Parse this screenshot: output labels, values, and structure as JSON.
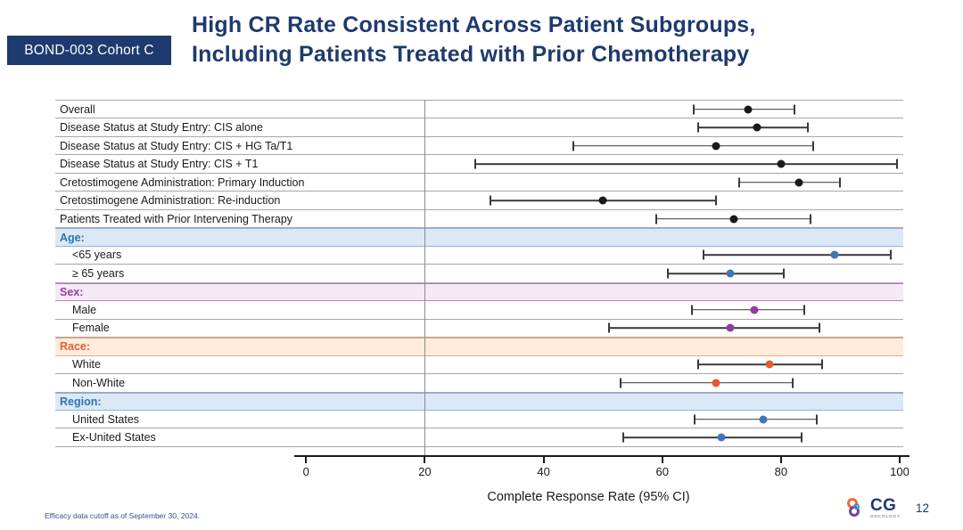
{
  "header": {
    "badge": "BOND-003 Cohort C",
    "title_line1": "High CR Rate Consistent Across Patient Subgroups,",
    "title_line2": "Including Patients Treated with Prior Chemotherapy"
  },
  "footer": {
    "note": "Efficacy data cutoff as of September 30, 2024.",
    "logo_text": "CG",
    "logo_subtext": "ONCOLOGY",
    "page_number": "12"
  },
  "colors": {
    "navy": "#1e3a6e",
    "ci": "#3a3a3a",
    "row_border": "#a6a6a6"
  },
  "chart_data": {
    "type": "forest",
    "xlabel": "Complete Response Rate (95% CI)",
    "xlim": [
      0,
      100
    ],
    "x_ticks": [
      0,
      20,
      40,
      60,
      80,
      100
    ],
    "divider_x": 20,
    "legend_position": "none",
    "grid": false,
    "palette": {
      "main": {
        "dot": "#1a1a1a",
        "text": "#1a1a1a",
        "bg": "#ffffff",
        "border": "#a6a6a6"
      },
      "age": {
        "dot": "#4274b9",
        "text": "#2e74b5",
        "bg": "#dbe8f6",
        "border": "#8fb3de"
      },
      "sex": {
        "dot": "#8f3e9f",
        "text": "#9b3d9b",
        "bg": "#f5e9f6",
        "border": "#bf7ec2"
      },
      "race": {
        "dot": "#e8582b",
        "text": "#e0603a",
        "bg": "#fdebdc",
        "border": "#f0a679"
      },
      "region": {
        "dot": "#4274b9",
        "text": "#2e74b5",
        "bg": "#dbe8f6",
        "border": "#8fb3de"
      }
    },
    "rows": [
      {
        "type": "data",
        "label": "Overall",
        "group": "main",
        "value": 74.5,
        "ci": [
          65.3,
          82.3
        ],
        "indent": false
      },
      {
        "type": "data",
        "label": "Disease Status at Study Entry: CIS alone",
        "group": "main",
        "value": 76,
        "ci": [
          66,
          84.5
        ],
        "indent": false
      },
      {
        "type": "data",
        "label": "Disease Status at Study Entry: CIS + HG Ta/T1",
        "group": "main",
        "value": 69,
        "ci": [
          45,
          85.5
        ],
        "indent": false
      },
      {
        "type": "data",
        "label": "Disease Status at Study Entry: CIS + T1",
        "group": "main",
        "value": 80,
        "ci": [
          28.5,
          99.5
        ],
        "indent": false
      },
      {
        "type": "data",
        "label": "Cretostimogene Administration: Primary Induction",
        "group": "main",
        "value": 83,
        "ci": [
          73,
          90
        ],
        "indent": false
      },
      {
        "type": "data",
        "label": "Cretostimogene Administration: Re-induction",
        "group": "main",
        "value": 50,
        "ci": [
          31,
          69
        ],
        "indent": false
      },
      {
        "type": "data",
        "label": "Patients Treated with Prior Intervening Therapy",
        "group": "main",
        "value": 72,
        "ci": [
          59,
          85
        ],
        "indent": false
      },
      {
        "type": "header",
        "label": "Age:",
        "group": "age"
      },
      {
        "type": "data",
        "label": "<65 years",
        "group": "age",
        "value": 89,
        "ci": [
          67,
          98.5
        ],
        "indent": true
      },
      {
        "type": "data",
        "label": "≥ 65 years",
        "group": "age",
        "value": 71.5,
        "ci": [
          61,
          80.5
        ],
        "indent": true
      },
      {
        "type": "header",
        "label": "Sex:",
        "group": "sex"
      },
      {
        "type": "data",
        "label": "Male",
        "group": "sex",
        "value": 75.5,
        "ci": [
          65,
          84
        ],
        "indent": true
      },
      {
        "type": "data",
        "label": "Female",
        "group": "sex",
        "value": 71.5,
        "ci": [
          51,
          86.5
        ],
        "indent": true
      },
      {
        "type": "header",
        "label": "Race:",
        "group": "race"
      },
      {
        "type": "data",
        "label": "White",
        "group": "race",
        "value": 78,
        "ci": [
          66,
          87
        ],
        "indent": true
      },
      {
        "type": "data",
        "label": "Non-White",
        "group": "race",
        "value": 69,
        "ci": [
          53,
          82
        ],
        "indent": true
      },
      {
        "type": "header",
        "label": "Region:",
        "group": "region"
      },
      {
        "type": "data",
        "label": "United States",
        "group": "region",
        "value": 77,
        "ci": [
          65.5,
          86
        ],
        "indent": true
      },
      {
        "type": "data",
        "label": "Ex-United States",
        "group": "region",
        "value": 70,
        "ci": [
          53.5,
          83.5
        ],
        "indent": true
      }
    ]
  }
}
